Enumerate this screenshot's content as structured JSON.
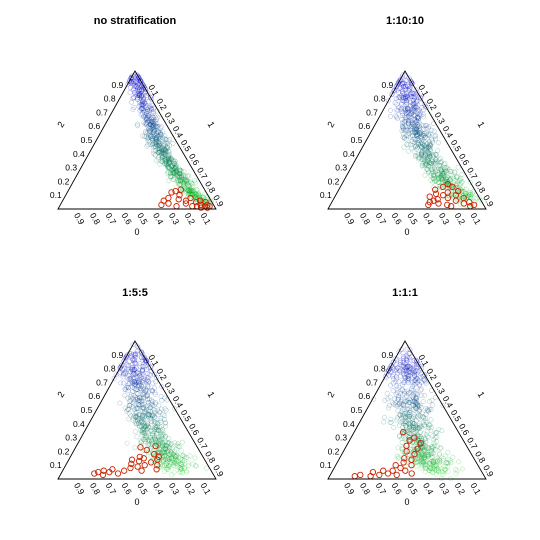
{
  "chart_data": [
    {
      "type": "scatter",
      "title": "no stratification",
      "axes": {
        "top_vertex_label": "1",
        "left_edge_label": "2",
        "bottom_edge_label": "0",
        "tick_values": [
          "0.1",
          "0.2",
          "0.3",
          "0.4",
          "0.5",
          "0.6",
          "0.7",
          "0.8",
          "0.9"
        ]
      },
      "series": [
        {
          "marker": "cloud",
          "color_low": "#00cc00",
          "color_high": "#0000cc",
          "path": [
            [
              0.02,
              0.96
            ],
            [
              0.06,
              0.8
            ],
            [
              0.1,
              0.62
            ],
            [
              0.12,
              0.5
            ],
            [
              0.14,
              0.38
            ],
            [
              0.12,
              0.26
            ],
            [
              0.1,
              0.14
            ],
            [
              0.05,
              0.04
            ]
          ],
          "spread": 0.05,
          "count": 700,
          "center_pull": 0.0
        },
        {
          "marker": "open-circle",
          "color": "#cc2200",
          "points": [
            [
              0.22,
              0.12
            ],
            [
              0.18,
              0.1
            ],
            [
              0.3,
              0.06
            ],
            [
              0.28,
              0.04
            ],
            [
              0.15,
              0.14
            ],
            [
              0.2,
              0.07
            ],
            [
              0.33,
              0.03
            ],
            [
              0.12,
              0.08
            ],
            [
              0.1,
              0.05
            ],
            [
              0.08,
              0.03
            ],
            [
              0.06,
              0.02
            ],
            [
              0.05,
              0.01
            ],
            [
              0.04,
              0.03
            ],
            [
              0.03,
              0.02
            ],
            [
              0.09,
              0.01
            ],
            [
              0.14,
              0.02
            ],
            [
              0.17,
              0.04
            ],
            [
              0.24,
              0.02
            ],
            [
              0.26,
              0.08
            ],
            [
              0.19,
              0.13
            ],
            [
              0.07,
              0.06
            ],
            [
              0.11,
              0.02
            ],
            [
              0.16,
              0.06
            ],
            [
              0.04,
              0.05
            ]
          ]
        }
      ]
    },
    {
      "type": "scatter",
      "title": "1:10:10",
      "axes": {
        "top_vertex_label": "1",
        "left_edge_label": "2",
        "bottom_edge_label": "0",
        "tick_values": [
          "0.1",
          "0.2",
          "0.3",
          "0.4",
          "0.5",
          "0.6",
          "0.7",
          "0.8",
          "0.9"
        ]
      },
      "series": [
        {
          "marker": "cloud",
          "color_low": "#00cc00",
          "color_high": "#0000cc",
          "path": [
            [
              0.03,
              0.96
            ],
            [
              0.08,
              0.8
            ],
            [
              0.14,
              0.64
            ],
            [
              0.16,
              0.52
            ],
            [
              0.18,
              0.4
            ],
            [
              0.16,
              0.28
            ],
            [
              0.14,
              0.18
            ],
            [
              0.08,
              0.06
            ]
          ],
          "spread": 0.08,
          "count": 700,
          "center_pull": 0.0
        },
        {
          "marker": "open-circle",
          "color": "#cc2200",
          "points": [
            [
              0.3,
              0.06
            ],
            [
              0.28,
              0.04
            ],
            [
              0.22,
              0.1
            ],
            [
              0.2,
              0.08
            ],
            [
              0.25,
              0.14
            ],
            [
              0.33,
              0.05
            ],
            [
              0.35,
              0.03
            ],
            [
              0.18,
              0.12
            ],
            [
              0.16,
              0.06
            ],
            [
              0.14,
              0.1
            ],
            [
              0.12,
              0.04
            ],
            [
              0.1,
              0.08
            ],
            [
              0.08,
              0.05
            ],
            [
              0.23,
              0.03
            ],
            [
              0.26,
              0.11
            ],
            [
              0.31,
              0.09
            ],
            [
              0.19,
              0.16
            ],
            [
              0.15,
              0.18
            ],
            [
              0.11,
              0.13
            ],
            [
              0.09,
              0.02
            ],
            [
              0.06,
              0.03
            ],
            [
              0.21,
              0.02
            ],
            [
              0.27,
              0.07
            ],
            [
              0.13,
              0.16
            ]
          ]
        }
      ]
    },
    {
      "type": "scatter",
      "title": "1:5:5",
      "axes": {
        "top_vertex_label": "1",
        "left_edge_label": "2",
        "bottom_edge_label": "0",
        "tick_values": [
          "0.1",
          "0.2",
          "0.3",
          "0.4",
          "0.5",
          "0.6",
          "0.7",
          "0.8",
          "0.9"
        ]
      },
      "series": [
        {
          "marker": "cloud",
          "color_low": "#00cc00",
          "color_high": "#0000cc",
          "path": [
            [
              0.03,
              0.94
            ],
            [
              0.1,
              0.78
            ],
            [
              0.16,
              0.62
            ],
            [
              0.2,
              0.5
            ],
            [
              0.24,
              0.38
            ],
            [
              0.24,
              0.26
            ],
            [
              0.22,
              0.16
            ],
            [
              0.18,
              0.08
            ]
          ],
          "spread": 0.1,
          "count": 700,
          "center_pull": 0.0
        },
        {
          "marker": "open-circle",
          "color": "#cc2200",
          "points": [
            [
              0.55,
              0.06
            ],
            [
              0.6,
              0.04
            ],
            [
              0.65,
              0.05
            ],
            [
              0.7,
              0.03
            ],
            [
              0.75,
              0.04
            ],
            [
              0.62,
              0.07
            ],
            [
              0.68,
              0.06
            ],
            [
              0.72,
              0.05
            ],
            [
              0.4,
              0.1
            ],
            [
              0.42,
              0.13
            ],
            [
              0.45,
              0.09
            ],
            [
              0.48,
              0.11
            ],
            [
              0.38,
              0.15
            ],
            [
              0.35,
              0.12
            ],
            [
              0.3,
              0.18
            ],
            [
              0.33,
              0.21
            ],
            [
              0.36,
              0.23
            ],
            [
              0.28,
              0.16
            ],
            [
              0.32,
              0.1
            ],
            [
              0.44,
              0.06
            ],
            [
              0.5,
              0.08
            ],
            [
              0.26,
              0.24
            ],
            [
              0.4,
              0.16
            ],
            [
              0.46,
              0.14
            ],
            [
              0.34,
              0.07
            ],
            [
              0.3,
              0.14
            ]
          ]
        }
      ]
    },
    {
      "type": "scatter",
      "title": "1:1:1",
      "axes": {
        "top_vertex_label": "1",
        "left_edge_label": "2",
        "bottom_edge_label": "0",
        "tick_values": [
          "0.1",
          "0.2",
          "0.3",
          "0.4",
          "0.5",
          "0.6",
          "0.7",
          "0.8",
          "0.9"
        ]
      },
      "series": [
        {
          "marker": "cloud",
          "color_low": "#00cc00",
          "color_high": "#0000cc",
          "path": [
            [
              0.05,
              0.9
            ],
            [
              0.1,
              0.76
            ],
            [
              0.16,
              0.62
            ],
            [
              0.22,
              0.48
            ],
            [
              0.26,
              0.36
            ],
            [
              0.3,
              0.24
            ],
            [
              0.3,
              0.14
            ],
            [
              0.28,
              0.06
            ]
          ],
          "spread": 0.11,
          "count": 700,
          "center_pull": 0.0
        },
        {
          "marker": "open-circle",
          "color": "#cc2200",
          "points": [
            [
              0.6,
              0.04
            ],
            [
              0.66,
              0.03
            ],
            [
              0.72,
              0.02
            ],
            [
              0.78,
              0.03
            ],
            [
              0.82,
              0.02
            ],
            [
              0.69,
              0.05
            ],
            [
              0.56,
              0.06
            ],
            [
              0.5,
              0.08
            ],
            [
              0.46,
              0.12
            ],
            [
              0.44,
              0.15
            ],
            [
              0.4,
              0.2
            ],
            [
              0.38,
              0.24
            ],
            [
              0.34,
              0.28
            ],
            [
              0.36,
              0.18
            ],
            [
              0.42,
              0.1
            ],
            [
              0.48,
              0.06
            ],
            [
              0.52,
              0.1
            ],
            [
              0.32,
              0.22
            ],
            [
              0.3,
              0.3
            ],
            [
              0.4,
              0.14
            ],
            [
              0.45,
              0.04
            ],
            [
              0.55,
              0.03
            ],
            [
              0.62,
              0.06
            ],
            [
              0.35,
              0.34
            ],
            [
              0.28,
              0.26
            ]
          ]
        }
      ]
    }
  ]
}
